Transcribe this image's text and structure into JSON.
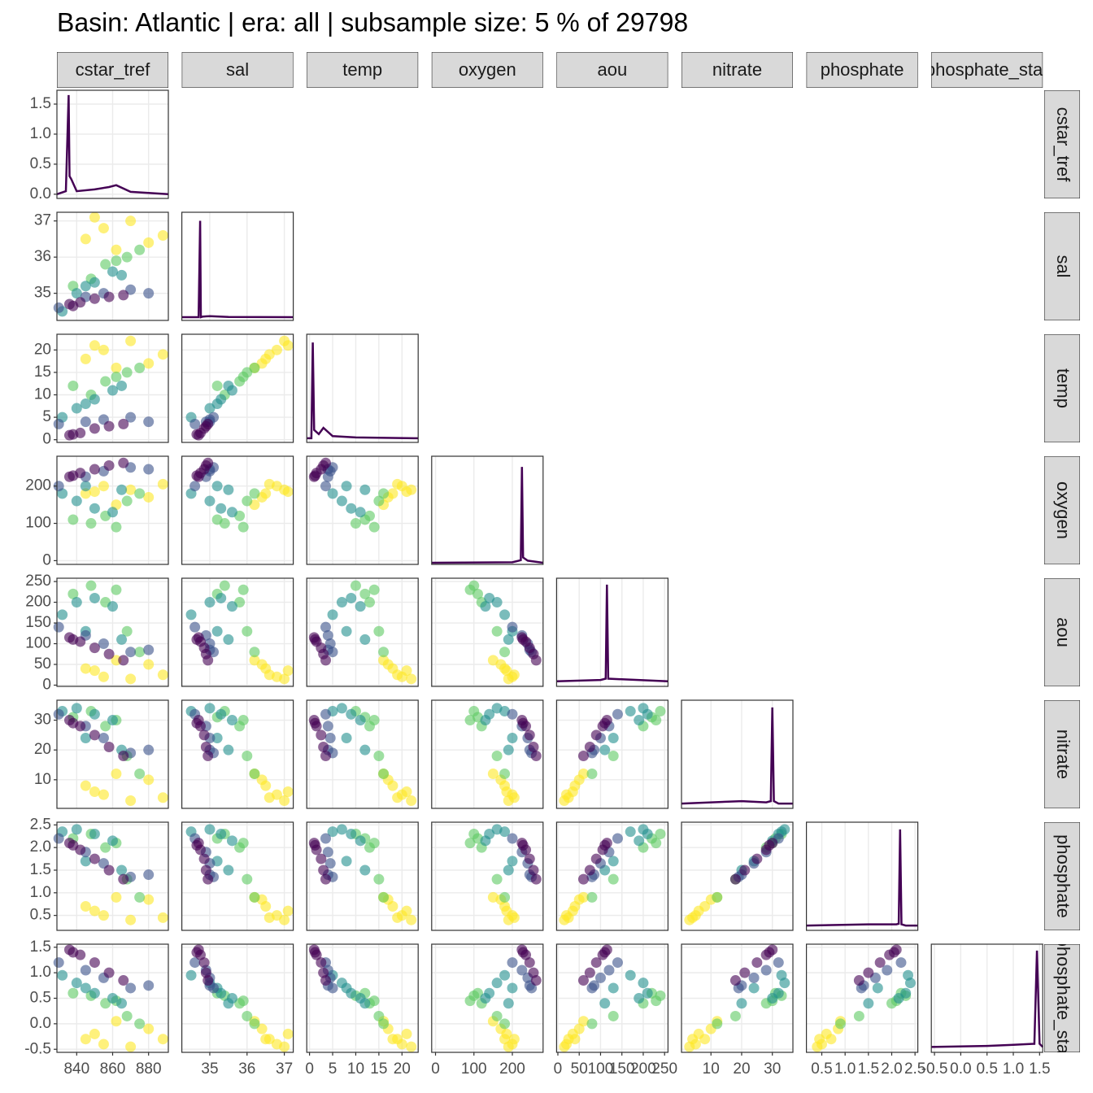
{
  "chart_data": {
    "type": "scatter-matrix",
    "title": "Basin: Atlantic | era: all | subsample size: 5 % of 29798",
    "grid": true,
    "variables": [
      {
        "name": "cstar_tref",
        "lim": [
          829,
          891
        ],
        "ticks": [
          840,
          860,
          880
        ]
      },
      {
        "name": "sal",
        "lim": [
          34.25,
          37.24
        ],
        "ticks": [
          35,
          36,
          37
        ]
      },
      {
        "name": "temp",
        "lim": [
          -0.6,
          23.5
        ],
        "ticks": [
          0,
          5,
          10,
          15,
          20
        ]
      },
      {
        "name": "oxygen",
        "lim": [
          -10,
          280
        ],
        "ticks": [
          0,
          100,
          200
        ]
      },
      {
        "name": "aou",
        "lim": [
          -3,
          258
        ],
        "ticks": [
          0,
          50,
          100,
          150,
          200,
          250
        ]
      },
      {
        "name": "nitrate",
        "lim": [
          0.4,
          36.7
        ],
        "ticks": [
          10,
          20,
          30
        ]
      },
      {
        "name": "phosphate",
        "lim": [
          0.17,
          2.56
        ],
        "ticks": [
          0.5,
          {
            "value": 1,
            "label": "1.0"
          },
          1.5,
          {
            "value": 2,
            "label": "2.0"
          },
          2.5
        ]
      },
      {
        "name": "phosphate_star",
        "lim": [
          -0.56,
          1.56
        ],
        "ticks": [
          -0.5,
          {
            "value": 0,
            "label": "0.0"
          },
          0.5,
          {
            "value": 1,
            "label": "1.0"
          },
          1.5
        ]
      }
    ],
    "densities": [
      {
        "color": "#440154",
        "ylim": [
          -0.07,
          1.73
        ],
        "yticks": [
          {
            "value": 0,
            "label": "0.0"
          },
          0.5,
          {
            "value": 1,
            "label": "1.0"
          },
          1.5
        ],
        "x": [
          829,
          834,
          835.5,
          836,
          837,
          840,
          850,
          858,
          862,
          870,
          880,
          891
        ],
        "y": [
          0,
          0.05,
          1.65,
          0.3,
          0.25,
          0.05,
          0.08,
          0.12,
          0.15,
          0.04,
          0.02,
          0
        ]
      },
      {
        "color": "#440154",
        "ylim": [
          -0.3,
          9.8
        ],
        "x": [
          34.25,
          34.7,
          34.74,
          34.76,
          34.8,
          35.0,
          35.5,
          37.24
        ],
        "y": [
          0,
          0,
          9.0,
          0,
          0.05,
          0.1,
          0.02,
          0
        ]
      },
      {
        "color": "#440154",
        "ylim": [
          -0.1,
          2.5
        ],
        "x": [
          -0.6,
          0.4,
          0.7,
          1.0,
          2.0,
          3.0,
          5,
          10,
          23.5
        ],
        "y": [
          0,
          0,
          2.3,
          0.2,
          0.1,
          0.25,
          0.05,
          0.02,
          0
        ]
      },
      {
        "color": "#440154",
        "ylim": [
          -0.003,
          0.2
        ],
        "x": [
          -10,
          200,
          222,
          225,
          228,
          240,
          280
        ],
        "y": [
          0,
          0.001,
          0.005,
          0.18,
          0.01,
          0.004,
          0
        ]
      },
      {
        "color": "#440154",
        "ylim": [
          -0.008,
          0.16
        ],
        "x": [
          -3,
          100,
          112,
          115,
          118,
          150,
          258
        ],
        "y": [
          0,
          0.002,
          0.004,
          0.15,
          0.004,
          0.003,
          0
        ]
      },
      {
        "color": "#440154",
        "ylim": [
          -0.04,
          0.86
        ],
        "x": [
          0.4,
          20,
          28,
          29.5,
          30,
          30.5,
          32,
          36.7
        ],
        "y": [
          0,
          0.02,
          0.01,
          0.02,
          0.8,
          0.02,
          0,
          0
        ]
      },
      {
        "color": "#440154",
        "ylim": [
          -0.4,
          8.6
        ],
        "x": [
          0.17,
          1.5,
          2.1,
          2.15,
          2.18,
          2.21,
          2.3,
          2.56
        ],
        "y": [
          0,
          0.1,
          0.1,
          0.15,
          8,
          0.1,
          0,
          0
        ]
      },
      {
        "color": "#440154",
        "ylim": [
          -0.5,
          9.6
        ],
        "x": [
          -0.56,
          0.5,
          1.0,
          1.4,
          1.45,
          1.5,
          1.56
        ],
        "y": [
          0,
          0.1,
          0.2,
          0.3,
          9,
          0.3,
          0
        ]
      }
    ],
    "series": [
      {
        "color": "#fde725",
        "values": [
          [
            845,
            36.5,
            18,
            180,
            40,
            8,
            0.7,
            -0.3
          ],
          [
            855,
            36.8,
            20,
            200,
            20,
            5,
            0.5,
            -0.4
          ],
          [
            870,
            37.0,
            22,
            190,
            15,
            3,
            0.4,
            -0.45
          ],
          [
            880,
            36.4,
            17,
            170,
            50,
            10,
            0.85,
            -0.1
          ],
          [
            888,
            36.6,
            19,
            205,
            25,
            4,
            0.45,
            -0.3
          ],
          [
            862,
            36.2,
            16,
            150,
            60,
            12,
            0.9,
            0.05
          ],
          [
            850,
            37.1,
            21,
            185,
            35,
            6,
            0.6,
            -0.2
          ]
        ]
      },
      {
        "color": "#5dc963",
        "values": [
          [
            848,
            35.4,
            10,
            100,
            240,
            33,
            2.3,
            0.55
          ],
          [
            856,
            35.8,
            13,
            120,
            200,
            28,
            2.0,
            0.4
          ],
          [
            868,
            36.0,
            15,
            160,
            130,
            18,
            1.3,
            0.15
          ],
          [
            875,
            36.2,
            16,
            180,
            80,
            12,
            0.9,
            0.0
          ],
          [
            838,
            35.2,
            12,
            110,
            220,
            31,
            2.2,
            0.6
          ],
          [
            862,
            35.9,
            14,
            90,
            230,
            30,
            2.1,
            0.45
          ]
        ]
      },
      {
        "color": "#21908d",
        "values": [
          [
            832,
            34.5,
            5,
            180,
            170,
            33,
            2.35,
            0.95
          ],
          [
            840,
            35.0,
            7,
            160,
            200,
            34,
            2.4,
            0.8
          ],
          [
            850,
            35.3,
            9,
            140,
            210,
            32,
            2.3,
            0.6
          ],
          [
            860,
            35.6,
            11,
            130,
            190,
            30,
            2.15,
            0.5
          ],
          [
            845,
            35.2,
            8,
            200,
            130,
            24,
            1.7,
            0.7
          ],
          [
            865,
            35.5,
            12,
            190,
            110,
            20,
            1.5,
            0.4
          ]
        ]
      },
      {
        "color": "#3b528b",
        "values": [
          [
            830,
            34.6,
            3.5,
            200,
            140,
            32,
            2.2,
            1.2
          ],
          [
            845,
            34.9,
            4.0,
            225,
            120,
            28,
            1.9,
            1.05
          ],
          [
            855,
            35.0,
            4.5,
            240,
            100,
            24,
            1.65,
            0.9
          ],
          [
            870,
            35.1,
            5.0,
            250,
            80,
            19,
            1.35,
            0.7
          ],
          [
            880,
            35.0,
            4.0,
            245,
            85,
            20,
            1.4,
            0.75
          ]
        ]
      },
      {
        "color": "#440154",
        "values": [
          [
            836,
            34.7,
            1.0,
            225,
            115,
            30,
            2.1,
            1.45
          ],
          [
            842,
            34.75,
            1.5,
            235,
            105,
            28,
            1.95,
            1.35
          ],
          [
            850,
            34.85,
            2.5,
            245,
            90,
            25,
            1.75,
            1.2
          ],
          [
            858,
            34.9,
            3.0,
            255,
            75,
            21,
            1.5,
            1.0
          ],
          [
            866,
            34.95,
            3.5,
            262,
            60,
            18,
            1.3,
            0.85
          ],
          [
            838,
            34.65,
            1.2,
            228,
            110,
            29,
            2.05,
            1.4
          ]
        ]
      }
    ]
  }
}
